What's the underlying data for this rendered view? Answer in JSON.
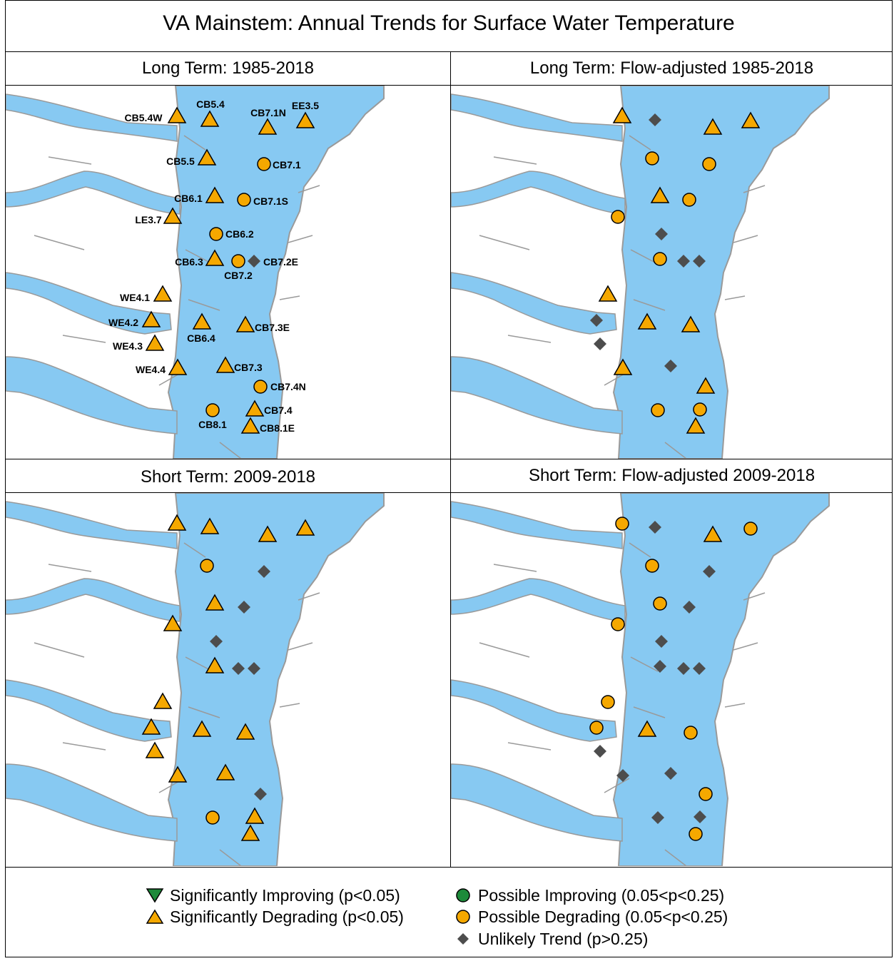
{
  "title": "VA Mainstem: Annual Trends for Surface Water Temperature",
  "panels": [
    {
      "title": "Long Term: 1985-2018"
    },
    {
      "title": "Long Term: Flow-adjusted 1985-2018"
    },
    {
      "title": "Short Term: 2009-2018"
    },
    {
      "title": "Short Term: Flow-adjusted 2009-2018"
    }
  ],
  "stations": [
    "CB5.4W",
    "CB5.4",
    "CB7.1N",
    "EE3.5",
    "CB5.5",
    "CB7.1",
    "CB6.1",
    "CB7.1S",
    "LE3.7",
    "CB6.2",
    "CB6.3",
    "CB7.2",
    "CB7.2E",
    "WE4.1",
    "WE4.2",
    "CB6.4",
    "CB7.3E",
    "WE4.3",
    "WE4.4",
    "CB7.3",
    "CB7.4N",
    "CB8.1",
    "CB7.4",
    "CB8.1E"
  ],
  "trends": {
    "long_term": [
      "sig_degrading",
      "sig_degrading",
      "sig_degrading",
      "sig_degrading",
      "sig_degrading",
      "possible_degrading",
      "sig_degrading",
      "possible_degrading",
      "sig_degrading",
      "possible_degrading",
      "sig_degrading",
      "possible_degrading",
      "unlikely",
      "sig_degrading",
      "sig_degrading",
      "sig_degrading",
      "sig_degrading",
      "sig_degrading",
      "sig_degrading",
      "sig_degrading",
      "possible_degrading",
      "possible_degrading",
      "sig_degrading",
      "sig_degrading"
    ],
    "long_term_flow_adjusted": [
      "sig_degrading",
      "unlikely",
      "sig_degrading",
      "sig_degrading",
      "possible_degrading",
      "possible_degrading",
      "sig_degrading",
      "possible_degrading",
      "possible_degrading",
      "unlikely",
      "possible_degrading",
      "unlikely",
      "unlikely",
      "sig_degrading",
      "unlikely",
      "sig_degrading",
      "sig_degrading",
      "unlikely",
      "sig_degrading",
      "unlikely",
      "sig_degrading",
      "possible_degrading",
      "possible_degrading",
      "sig_degrading"
    ],
    "short_term": [
      "sig_degrading",
      "sig_degrading",
      "sig_degrading",
      "sig_degrading",
      "possible_degrading",
      "unlikely",
      "sig_degrading",
      "unlikely",
      "sig_degrading",
      "unlikely",
      "sig_degrading",
      "unlikely",
      "unlikely",
      "sig_degrading",
      "sig_degrading",
      "sig_degrading",
      "sig_degrading",
      "sig_degrading",
      "sig_degrading",
      "sig_degrading",
      "unlikely",
      "possible_degrading",
      "sig_degrading",
      "sig_degrading"
    ],
    "short_term_flow_adjusted": [
      "possible_degrading",
      "unlikely",
      "sig_degrading",
      "possible_degrading",
      "possible_degrading",
      "unlikely",
      "possible_degrading",
      "unlikely",
      "possible_degrading",
      "unlikely",
      "unlikely",
      "unlikely",
      "unlikely",
      "possible_degrading",
      "possible_degrading",
      "sig_degrading",
      "possible_degrading",
      "unlikely",
      "unlikely",
      "unlikely",
      "possible_degrading",
      "unlikely",
      "unlikely",
      "possible_degrading"
    ]
  },
  "legend": [
    {
      "key": "sig_improving",
      "label": "Significantly Improving (p<0.05)"
    },
    {
      "key": "sig_degrading",
      "label": "Significantly Degrading (p<0.05)"
    },
    {
      "key": "possible_improving",
      "label": "Possible Improving (0.05<p<0.25)"
    },
    {
      "key": "possible_degrading",
      "label": "Possible Degrading (0.05<p<0.25)"
    },
    {
      "key": "unlikely",
      "label": "Unlikely Trend (p>0.25)"
    }
  ],
  "colors": {
    "water": "#87c9f2",
    "shoreline": "#9a9a9a",
    "land": "#ffffff",
    "degrading": "#f5a800",
    "improving": "#1d8a3a",
    "unlikely": "#4d4d4d",
    "outline": "#000000"
  }
}
